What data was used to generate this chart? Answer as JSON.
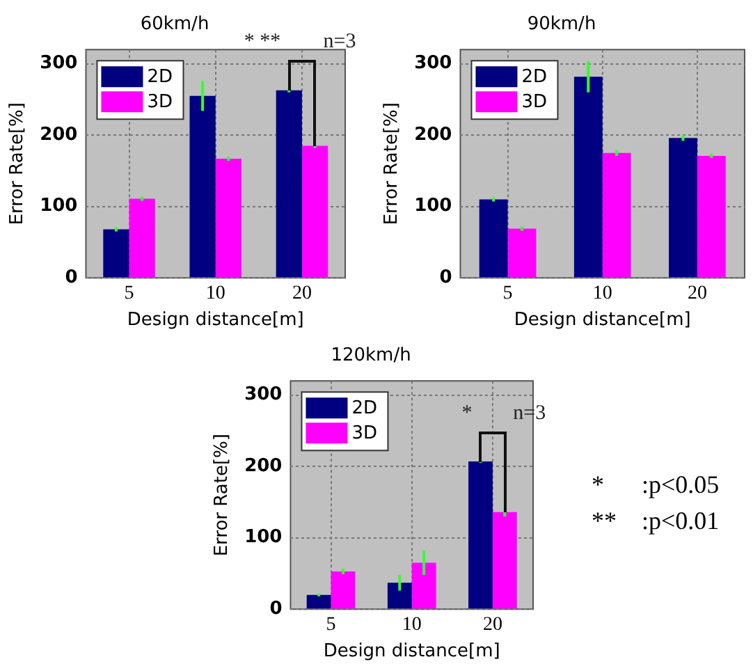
{
  "chart_data": [
    {
      "type": "bar",
      "title": "60km/h",
      "xlabel": "Design distance[m]",
      "ylabel": "Error Rate[%]",
      "categories": [
        "5",
        "10",
        "20"
      ],
      "series": [
        {
          "name": "2D",
          "color": "#000080",
          "values": [
            68,
            255,
            263
          ],
          "errors": [
            3,
            21,
            3
          ]
        },
        {
          "name": "3D",
          "color": "#ff00ff",
          "values": [
            111,
            167,
            185
          ],
          "errors": [
            3,
            3,
            3
          ]
        }
      ],
      "ylim": [
        0,
        320
      ],
      "yticks": [
        0,
        100,
        200,
        300
      ],
      "grid": true,
      "legend": "top left",
      "annotations": [
        "* **",
        "n=3"
      ]
    },
    {
      "type": "bar",
      "title": "90km/h",
      "xlabel": "Design distance[m]",
      "ylabel": "Error Rate[%]",
      "categories": [
        "5",
        "10",
        "20"
      ],
      "series": [
        {
          "name": "2D",
          "color": "#000080",
          "values": [
            110,
            282,
            196
          ],
          "errors": [
            3,
            22,
            4
          ]
        },
        {
          "name": "3D",
          "color": "#ff00ff",
          "values": [
            69,
            175,
            171
          ],
          "errors": [
            3,
            4,
            3
          ]
        }
      ],
      "ylim": [
        0,
        320
      ],
      "yticks": [
        0,
        100,
        200,
        300
      ],
      "grid": true,
      "legend": "top left"
    },
    {
      "type": "bar",
      "title": "120km/h",
      "xlabel": "Design distance[m]",
      "ylabel": "Error Rate[%]",
      "categories": [
        "5",
        "10",
        "20"
      ],
      "series": [
        {
          "name": "2D",
          "color": "#000080",
          "values": [
            20,
            37,
            207
          ],
          "errors": [
            2,
            11,
            2
          ]
        },
        {
          "name": "3D",
          "color": "#ff00ff",
          "values": [
            53,
            65,
            136
          ],
          "errors": [
            4,
            17,
            6
          ]
        }
      ],
      "ylim": [
        0,
        320
      ],
      "yticks": [
        0,
        100,
        200,
        300
      ],
      "grid": true,
      "legend": "top left",
      "annotations": [
        "*",
        "n=3",
        "*      :p<0.05",
        "**    :p<0.01"
      ]
    }
  ]
}
